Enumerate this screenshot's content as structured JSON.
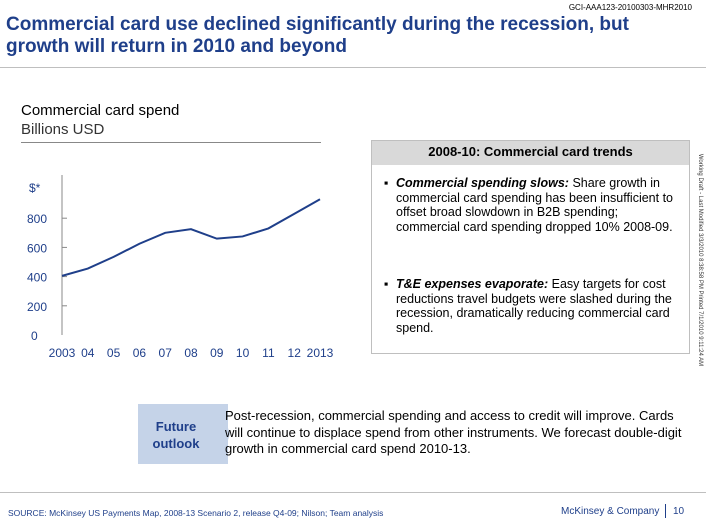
{
  "doc_id": "GCI-AAA123-20100303-MHR2010",
  "title": "Commercial card use declined significantly during the recession, but growth will return in 2010 and beyond",
  "chart_title": "Commercial card spend",
  "chart_unit": "Billions USD",
  "chart_data": {
    "type": "line",
    "title": "Commercial card spend",
    "ylabel": "$*",
    "unit": "Billions USD",
    "categories": [
      "2003",
      "04",
      "05",
      "06",
      "07",
      "08",
      "09",
      "10",
      "11",
      "12",
      "2013"
    ],
    "values": [
      405,
      455,
      535,
      625,
      700,
      725,
      660,
      675,
      730,
      830,
      930
    ],
    "yticks": [
      0,
      200,
      400,
      600,
      800
    ],
    "ylim": [
      0,
      1000
    ],
    "grid": false,
    "colors": {
      "line": "#1f3f8a",
      "axis": "#888888",
      "label": "#1f3f8a"
    }
  },
  "trends": {
    "header": "2008-10: Commercial card trends",
    "bullet_glyph": "▪",
    "bullets": [
      {
        "head": "Commercial spending slows:",
        "text": " Share growth in commercial card spending has been insufficient to offset broad slowdown in B2B spending; commercial card spending dropped 10% 2008-09."
      },
      {
        "head": "T&E expenses evaporate:",
        "text": " Easy targets for cost reductions travel budgets were slashed during the recession, dramatically reducing commercial card spend."
      }
    ]
  },
  "side_stamp": "Working Draft - Last Modified 3/3/2010 8:38:58 PM     Printed 7/1/2010 9:11:24 AM",
  "outlook": {
    "label": "Future outlook",
    "text": "Post-recession, commercial spending and access to credit will improve. Cards will continue to displace spend from other instruments. We forecast double-digit growth in commercial card spend 2010-13."
  },
  "footer": {
    "source": "SOURCE: McKinsey US Payments Map, 2008-13 Scenario 2, release Q4-09; Nilson; Team analysis",
    "brand": "McKinsey & Company",
    "page": "10"
  }
}
